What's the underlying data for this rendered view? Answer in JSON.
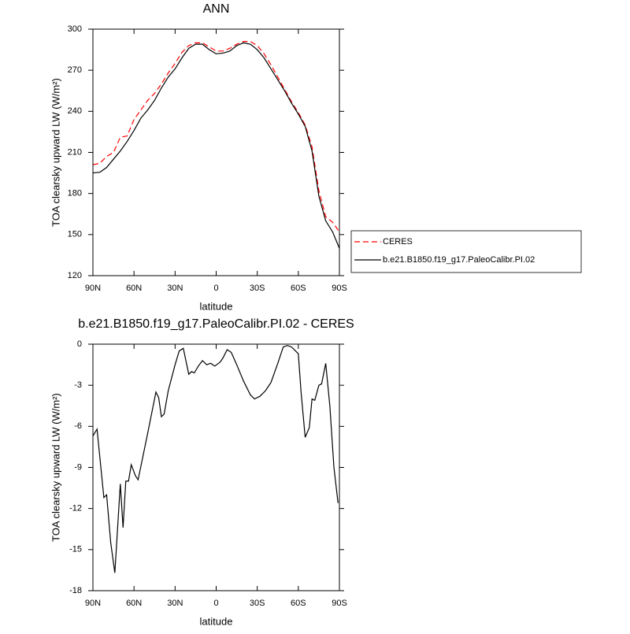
{
  "chart_data": [
    {
      "type": "line",
      "title": "ANN",
      "x_label": "latitude",
      "y_label": "TOA clearsky upward LW (W/m²)",
      "x": [
        90,
        85,
        80,
        75,
        70,
        65,
        60,
        55,
        50,
        45,
        40,
        35,
        30,
        25,
        20,
        15,
        10,
        5,
        0,
        -5,
        -10,
        -15,
        -20,
        -25,
        -30,
        -35,
        -40,
        -45,
        -50,
        -55,
        -60,
        -65,
        -70,
        -75,
        -80,
        -85,
        -90
      ],
      "series": [
        {
          "name": "CERES",
          "color": "#ff0000",
          "dashed": true,
          "values": [
            201,
            202,
            207,
            210,
            221,
            222,
            234,
            241,
            248,
            253,
            260,
            268,
            275,
            283,
            288,
            290,
            290,
            287,
            284,
            284,
            286,
            289,
            291,
            291,
            288,
            282,
            274,
            265,
            256,
            247,
            239,
            230,
            214,
            182,
            163,
            159,
            152
          ]
        },
        {
          "name": "b.e21.B1850.f19_g17.PaleoCalibr.PI.02",
          "color": "#000000",
          "dashed": false,
          "values": [
            195,
            195.5,
            199,
            205,
            211,
            218,
            226,
            235,
            241,
            248,
            257,
            265,
            271,
            279,
            286,
            289,
            289,
            285,
            282,
            282.5,
            284,
            288,
            290,
            289,
            285,
            279,
            271,
            263,
            255,
            246,
            238,
            229,
            211,
            178,
            160,
            152,
            140
          ]
        }
      ],
      "xlim": [
        90,
        -90
      ],
      "xticks": [
        {
          "value": 90,
          "label": "90N"
        },
        {
          "value": 60,
          "label": "60N"
        },
        {
          "value": 30,
          "label": "30N"
        },
        0,
        {
          "value": -30,
          "label": "30S"
        },
        {
          "value": -60,
          "label": "60S"
        },
        {
          "value": -90,
          "label": "90S"
        }
      ],
      "ylim": [
        120,
        300
      ],
      "yticks": [
        120,
        150,
        180,
        210,
        240,
        270,
        300
      ],
      "legend": "outside-right"
    },
    {
      "type": "line",
      "title": "b.e21.B1850.f19_g17.PaleoCalibr.PI.02 - CERES",
      "x_label": "latitude",
      "y_label": "TOA clearsky upward LW (W/m²)",
      "x": [
        90,
        87,
        82,
        80,
        77,
        74,
        70,
        68,
        66,
        64,
        62,
        59,
        57,
        50,
        46,
        44,
        42,
        40,
        38,
        35,
        30,
        27,
        24,
        20,
        18,
        16,
        13,
        10,
        7,
        4,
        1,
        -3,
        -5,
        -8,
        -11,
        -15,
        -20,
        -25,
        -28,
        -32,
        -36,
        -40,
        -45,
        -49,
        -52,
        -55,
        -60,
        -62,
        -65,
        -68,
        -70,
        -72,
        -75,
        -77,
        -80,
        -83,
        -86,
        -89
      ],
      "values": [
        -6.7,
        -6.2,
        -11.2,
        -11,
        -14.5,
        -16.7,
        -10.2,
        -13.4,
        -10,
        -10,
        -8.8,
        -9.6,
        -9.9,
        -6.5,
        -4.5,
        -3.5,
        -3.9,
        -5.3,
        -5.1,
        -3.4,
        -1.5,
        -0.5,
        -0.3,
        -2.2,
        -2,
        -2.1,
        -1.6,
        -1.2,
        -1.5,
        -1.4,
        -1.6,
        -1.3,
        -1,
        -0.4,
        -0.6,
        -1.5,
        -2.7,
        -3.7,
        -4,
        -3.8,
        -3.4,
        -2.8,
        -1.4,
        -0.2,
        -0.1,
        -0.2,
        -0.7,
        -3.5,
        -6.8,
        -6.1,
        -4,
        -4.1,
        -3,
        -2.9,
        -1.4,
        -4.5,
        -9,
        -11.6
      ],
      "color": "#000000",
      "xlim": [
        90,
        -90
      ],
      "xticks": [
        {
          "value": 90,
          "label": "90N"
        },
        {
          "value": 60,
          "label": "60N"
        },
        {
          "value": 30,
          "label": "30N"
        },
        0,
        {
          "value": -30,
          "label": "30S"
        },
        {
          "value": -60,
          "label": "60S"
        },
        {
          "value": -90,
          "label": "90S"
        }
      ],
      "ylim": [
        -18,
        0
      ],
      "yticks": [
        -18,
        -15,
        -12,
        -9,
        -6,
        -3,
        0
      ]
    }
  ]
}
